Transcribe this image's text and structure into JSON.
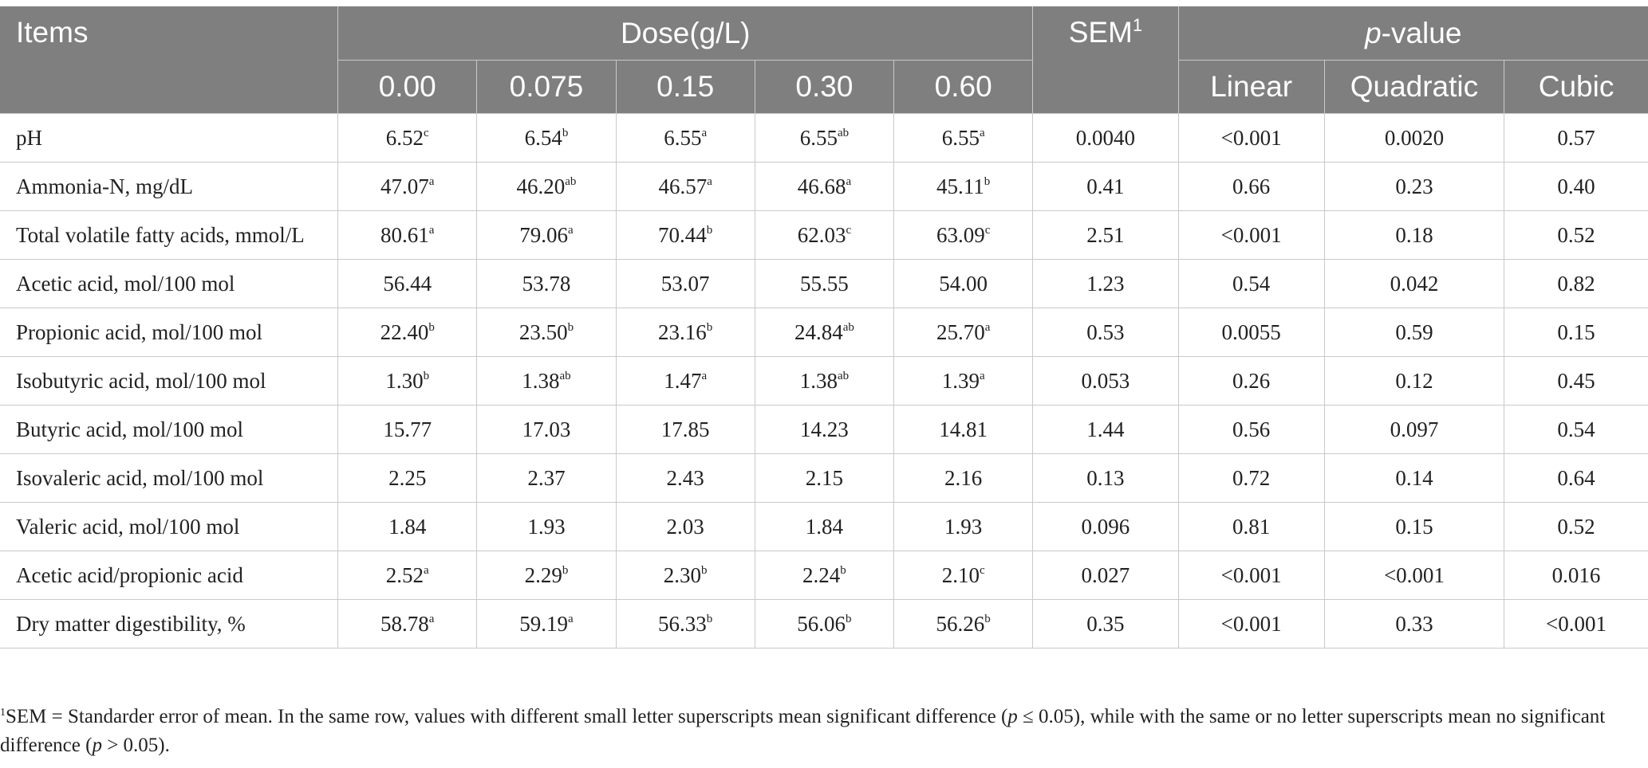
{
  "header": {
    "items": "Items",
    "dose": "Dose(g/L)",
    "sem": "SEM",
    "sem_sup": "1",
    "pvalue_p": "p",
    "pvalue_rest": "-value",
    "doses": [
      "0.00",
      "0.075",
      "0.15",
      "0.30",
      "0.60"
    ],
    "linear": "Linear",
    "quadratic": "Quadratic",
    "cubic": "Cubic"
  },
  "rows": [
    {
      "item": "pH",
      "doses": [
        {
          "v": "6.52",
          "s": "c"
        },
        {
          "v": "6.54",
          "s": "b"
        },
        {
          "v": "6.55",
          "s": "a"
        },
        {
          "v": "6.55",
          "s": "ab"
        },
        {
          "v": "6.55",
          "s": "a"
        }
      ],
      "sem": "0.0040",
      "linear": "<0.001",
      "quadratic": "0.0020",
      "cubic": "0.57"
    },
    {
      "item": "Ammonia-N, mg/dL",
      "doses": [
        {
          "v": "47.07",
          "s": "a"
        },
        {
          "v": "46.20",
          "s": "ab"
        },
        {
          "v": "46.57",
          "s": "a"
        },
        {
          "v": "46.68",
          "s": "a"
        },
        {
          "v": "45.11",
          "s": "b"
        }
      ],
      "sem": "0.41",
      "linear": "0.66",
      "quadratic": "0.23",
      "cubic": "0.40"
    },
    {
      "item": "Total volatile fatty acids, mmol/L",
      "doses": [
        {
          "v": "80.61",
          "s": "a"
        },
        {
          "v": "79.06",
          "s": "a"
        },
        {
          "v": "70.44",
          "s": "b"
        },
        {
          "v": "62.03",
          "s": "c"
        },
        {
          "v": "63.09",
          "s": "c"
        }
      ],
      "sem": "2.51",
      "linear": "<0.001",
      "quadratic": "0.18",
      "cubic": "0.52"
    },
    {
      "item": "Acetic acid, mol/100 mol",
      "doses": [
        {
          "v": "56.44",
          "s": ""
        },
        {
          "v": "53.78",
          "s": ""
        },
        {
          "v": "53.07",
          "s": ""
        },
        {
          "v": "55.55",
          "s": ""
        },
        {
          "v": "54.00",
          "s": ""
        }
      ],
      "sem": "1.23",
      "linear": "0.54",
      "quadratic": "0.042",
      "cubic": "0.82"
    },
    {
      "item": "Propionic acid, mol/100 mol",
      "doses": [
        {
          "v": "22.40",
          "s": "b"
        },
        {
          "v": "23.50",
          "s": "b"
        },
        {
          "v": "23.16",
          "s": "b"
        },
        {
          "v": "24.84",
          "s": "ab"
        },
        {
          "v": "25.70",
          "s": "a"
        }
      ],
      "sem": "0.53",
      "linear": "0.0055",
      "quadratic": "0.59",
      "cubic": "0.15"
    },
    {
      "item": "Isobutyric acid, mol/100 mol",
      "doses": [
        {
          "v": "1.30",
          "s": "b"
        },
        {
          "v": "1.38",
          "s": "ab"
        },
        {
          "v": "1.47",
          "s": "a"
        },
        {
          "v": "1.38",
          "s": "ab"
        },
        {
          "v": "1.39",
          "s": "a"
        }
      ],
      "sem": "0.053",
      "linear": "0.26",
      "quadratic": "0.12",
      "cubic": "0.45"
    },
    {
      "item": "Butyric acid, mol/100 mol",
      "doses": [
        {
          "v": "15.77",
          "s": ""
        },
        {
          "v": "17.03",
          "s": ""
        },
        {
          "v": "17.85",
          "s": ""
        },
        {
          "v": "14.23",
          "s": ""
        },
        {
          "v": "14.81",
          "s": ""
        }
      ],
      "sem": "1.44",
      "linear": "0.56",
      "quadratic": "0.097",
      "cubic": "0.54"
    },
    {
      "item": "Isovaleric acid, mol/100 mol",
      "doses": [
        {
          "v": "2.25",
          "s": ""
        },
        {
          "v": "2.37",
          "s": ""
        },
        {
          "v": "2.43",
          "s": ""
        },
        {
          "v": "2.15",
          "s": ""
        },
        {
          "v": "2.16",
          "s": ""
        }
      ],
      "sem": "0.13",
      "linear": "0.72",
      "quadratic": "0.14",
      "cubic": "0.64"
    },
    {
      "item": "Valeric acid, mol/100 mol",
      "doses": [
        {
          "v": "1.84",
          "s": ""
        },
        {
          "v": "1.93",
          "s": ""
        },
        {
          "v": "2.03",
          "s": ""
        },
        {
          "v": "1.84",
          "s": ""
        },
        {
          "v": "1.93",
          "s": ""
        }
      ],
      "sem": "0.096",
      "linear": "0.81",
      "quadratic": "0.15",
      "cubic": "0.52"
    },
    {
      "item": "Acetic acid/propionic acid",
      "doses": [
        {
          "v": "2.52",
          "s": "a"
        },
        {
          "v": "2.29",
          "s": "b"
        },
        {
          "v": "2.30",
          "s": "b"
        },
        {
          "v": "2.24",
          "s": "b"
        },
        {
          "v": "2.10",
          "s": "c"
        }
      ],
      "sem": "0.027",
      "linear": "<0.001",
      "quadratic": "<0.001",
      "cubic": "0.016"
    },
    {
      "item": "Dry matter digestibility, %",
      "doses": [
        {
          "v": "58.78",
          "s": "a"
        },
        {
          "v": "59.19",
          "s": "a"
        },
        {
          "v": "56.33",
          "s": "b"
        },
        {
          "v": "56.06",
          "s": "b"
        },
        {
          "v": "56.26",
          "s": "b"
        }
      ],
      "sem": "0.35",
      "linear": "<0.001",
      "quadratic": "0.33",
      "cubic": "<0.001"
    }
  ],
  "footnote": {
    "marker": "1",
    "part1": "SEM = Standarder error of mean. In the same row, values with different small letter superscripts mean significant difference (",
    "p1": "p",
    "part2": " ≤ 0.05), while with the same or no letter superscripts mean no significant difference (",
    "p2": "p",
    "part3": " > 0.05)."
  }
}
